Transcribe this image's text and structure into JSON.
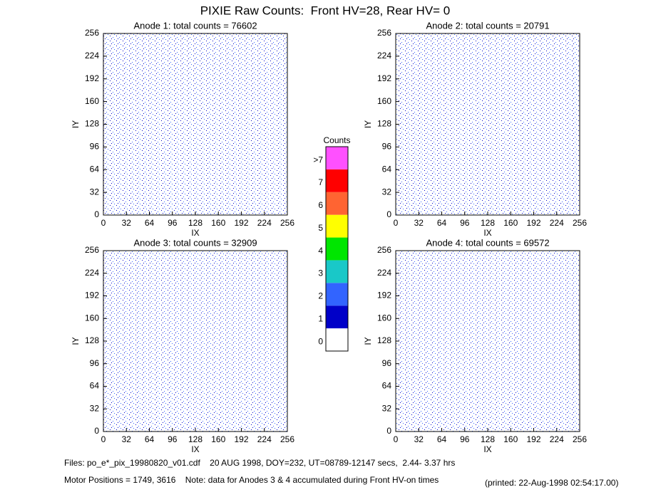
{
  "title": "PIXIE Raw Counts:  Front HV=28, Rear HV= 0",
  "chart_data": [
    {
      "type": "heatmap",
      "title": "Anode 1: total counts = 76602",
      "xlabel": "IX",
      "ylabel": "IY",
      "xlim": [
        0,
        256
      ],
      "ylim": [
        0,
        256
      ],
      "xticks": [
        0,
        32,
        64,
        96,
        128,
        160,
        192,
        224,
        256
      ],
      "yticks": [
        0,
        32,
        64,
        96,
        128,
        160,
        192,
        224,
        256
      ]
    },
    {
      "type": "heatmap",
      "title": "Anode 2: total counts = 20791",
      "xlabel": "IX",
      "ylabel": "IY",
      "xlim": [
        0,
        256
      ],
      "ylim": [
        0,
        256
      ],
      "xticks": [
        0,
        32,
        64,
        96,
        128,
        160,
        192,
        224,
        256
      ],
      "yticks": [
        0,
        32,
        64,
        96,
        128,
        160,
        192,
        224,
        256
      ]
    },
    {
      "type": "heatmap",
      "title": "Anode 3: total counts = 32909",
      "xlabel": "IX",
      "ylabel": "IY",
      "xlim": [
        0,
        256
      ],
      "ylim": [
        0,
        256
      ],
      "xticks": [
        0,
        32,
        64,
        96,
        128,
        160,
        192,
        224,
        256
      ],
      "yticks": [
        0,
        32,
        64,
        96,
        128,
        160,
        192,
        224,
        256
      ]
    },
    {
      "type": "heatmap",
      "title": "Anode 4: total counts = 69572",
      "xlabel": "IX",
      "ylabel": "IY",
      "xlim": [
        0,
        256
      ],
      "ylim": [
        0,
        256
      ],
      "xticks": [
        0,
        32,
        64,
        96,
        128,
        160,
        192,
        224,
        256
      ],
      "yticks": [
        0,
        32,
        64,
        96,
        128,
        160,
        192,
        224,
        256
      ]
    }
  ],
  "colorbar": {
    "title": "Counts",
    "levels": [
      {
        "label": "0",
        "color": "#ffffff"
      },
      {
        "label": "1",
        "color": "#0000c8"
      },
      {
        "label": "2",
        "color": "#3264ff"
      },
      {
        "label": "3",
        "color": "#19c8c8"
      },
      {
        "label": "4",
        "color": "#00e600"
      },
      {
        "label": "5",
        "color": "#ffff00"
      },
      {
        "label": "6",
        "color": "#ff6432"
      },
      {
        "label": "7",
        "color": "#ff0000"
      },
      {
        "label": ">7",
        "color": "#ff50ff"
      }
    ]
  },
  "footer": {
    "files": "Files: po_e*_pix_19980820_v01.cdf    20 AUG 1998, DOY=232, UT=08789-12147 secs,  2.44- 3.37 hrs",
    "motor": "Motor Positions = 1749, 3616    Note: data for Anodes 3 & 4 accumulated during Front HV-on times",
    "printed": "(printed: 22-Aug-1998 02:54:17.00)"
  }
}
